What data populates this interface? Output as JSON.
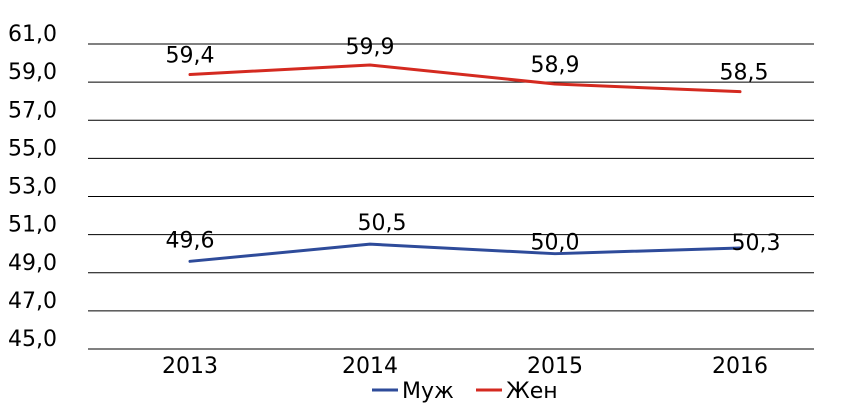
{
  "chart_data": {
    "type": "line",
    "categories": [
      "2013",
      "2014",
      "2015",
      "2016"
    ],
    "series": [
      {
        "name": "Муж",
        "values": [
          49.6,
          50.5,
          50.0,
          50.3
        ],
        "labels": [
          "49,6",
          "50,5",
          "50,0",
          "50,3"
        ],
        "color": "#2E4B9A"
      },
      {
        "name": "Жен",
        "values": [
          59.4,
          59.9,
          58.9,
          58.5
        ],
        "labels": [
          "59,4",
          "59,9",
          "58,9",
          "58,5"
        ],
        "color": "#D42A20"
      }
    ],
    "ylim": [
      45,
      61
    ],
    "yticks": [
      45,
      47,
      49,
      51,
      53,
      55,
      57,
      59,
      61
    ],
    "ytick_labels": [
      "45,0",
      "47,0",
      "49,0",
      "51,0",
      "53,0",
      "55,0",
      "57,0",
      "59,0",
      "61,0"
    ],
    "grid": true,
    "legend_position": "bottom",
    "title": "",
    "xlabel": "",
    "ylabel": ""
  }
}
